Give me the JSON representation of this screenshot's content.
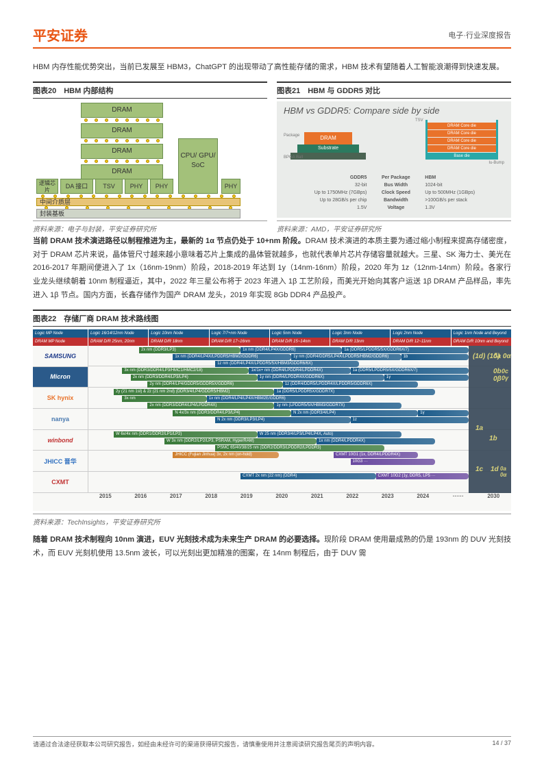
{
  "header": {
    "logo": "平安证券",
    "right": "电子·行业深度报告"
  },
  "intro": "HBM 内存性能优势突出，当前已发展至 HBM3，ChatGPT 的出现带动了高性能存储的需求，HBM 技术有望随着人工智能浪潮得到快速发展。",
  "fig20": {
    "title": "图表20　HBM 内部结构",
    "dram_label": "DRAM",
    "logic_chip": "逻辑芯片",
    "da": "DA 接口",
    "tsv": "TSV",
    "phy": "PHY",
    "soc": "CPU/\nGPU/\nSoC",
    "interposer": "中间介质层",
    "substrate": "封装基板",
    "source": "资料来源：电子与封装，平安证券研究所",
    "colors": {
      "block": "#a3c17a",
      "block_border": "#6b8e4e",
      "bump": "#f5c518",
      "interposer": "#e8c477",
      "substrate": "#cfd5c8"
    }
  },
  "fig21": {
    "title": "图表21　HBM 与 GDDR5 对比",
    "cmp_title": "HBM vs GDDR5:\nCompare side by side",
    "gddr": {
      "package": "Package",
      "dram": "DRAM",
      "substrate": "Substrate",
      "bga": "BPGA Ball"
    },
    "hbm": {
      "tsv": "TSV",
      "core_die": "DRAM Core die",
      "base_die": "Base die",
      "ubump": "Iu-Bump"
    },
    "table": {
      "hdr": [
        "GDDR5",
        "Per Package",
        "HBM"
      ],
      "rows": [
        [
          "32-bit",
          "Bus Width",
          "1024-bit"
        ],
        [
          "Up to 1750MHz (7GBps)",
          "Clock Speed",
          "Up to 500MHz (1GBps)"
        ],
        [
          "Up to 28GB/s per chip",
          "Bandwidth",
          ">100GB/s per stack"
        ],
        [
          "1.5V",
          "Voltage",
          "1.3V"
        ]
      ]
    },
    "source": "资料来源：AMD，平安证券研究所"
  },
  "para1_bold": "当前 DRAM 技术演进路径以制程推进为主，最新的 1α 节点仍处于 10+nm 阶段。",
  "para1": "DRAM 技术演进的本质主要为通过缩小制程来提高存储密度，对于 DRAM 芯片来说，晶体管尺寸越来越小意味着芯片上集成的晶体管就越多，也就代表单片芯片存储容量就越大。三星、SK 海力士、美光在 2016-2017 年期间便进入了 1x（16nm-19nm）阶段，2018-2019 年达到 1y（14nm-16nm）阶段，2020 年为 1z（12nm-14nm）阶段。各家行业龙头继续朝着 10nm 制程逼近，其中，2022 年三星公布将于 2023 年进入 1β 工艺阶段，而美光开始向其客户运送 1β DRAM 产品样品，率先进入 1β 节点。国内方面，长鑫存储作为国产 DRAM 龙头，2019 年实现 8Gb DDR4 产品投产。",
  "fig22": {
    "title": "图表22　存储厂商 DRAM 技术路线图",
    "hdr_left": [
      "Logic MP Node",
      "DRAM MP Node"
    ],
    "hdr_logic": [
      "Logic 16/14/12nm Node",
      "Logic 10nm Node",
      "Logic 7/7+nm Node",
      "Logic 5nm Node",
      "Logic 3nm Node",
      "Logic 2nm Node",
      "Logic 1nm Node and Beyond"
    ],
    "hdr_dram": [
      "DRAM D/R 25nm, 20nm",
      "DRAM D/R 18nm",
      "DRAM D/R 17~16nm",
      "DRAM D/R 15~14nm",
      "DRAM D/R 13nm",
      "DRAM D/R 12~11nm",
      "DRAM D/R 10nm and Beyond"
    ],
    "colors": {
      "logic_hdr": "#1a5a8a",
      "dram_hdr": "#c03030"
    },
    "companies": [
      {
        "name": "SAMSUNG",
        "class": "samsung"
      },
      {
        "name": "Micron",
        "class": "micron"
      },
      {
        "name": "SK hynix",
        "class": "skhynix"
      },
      {
        "name": "nanya",
        "class": "nanya"
      },
      {
        "name": "winbond",
        "class": "winbond"
      },
      {
        "name": "JHICC 晋华",
        "class": "jhicc"
      },
      {
        "name": "CXMT",
        "class": "cxmt"
      }
    ],
    "years": [
      "2015",
      "2016",
      "2017",
      "2018",
      "2019",
      "2020",
      "2021",
      "2022",
      "2023",
      "2024",
      "······",
      "2030"
    ],
    "bars": [
      {
        "lane": 0,
        "row": 0,
        "start": 12,
        "end": 36,
        "color": "#3a7a3a",
        "label": "2x nm (DDR3/LP3)"
      },
      {
        "lane": 0,
        "row": 0,
        "start": 36,
        "end": 60,
        "color": "#1a5a8a",
        "label": "1x nm (DDR4/LP4X/GDDR6)"
      },
      {
        "lane": 0,
        "row": 1,
        "start": 20,
        "end": 48,
        "color": "#1a5a8a",
        "label": "1x nm (DDR4/LP4X/LPDDR5/HBM2/GDDR6)"
      },
      {
        "lane": 0,
        "row": 1,
        "start": 48,
        "end": 74,
        "color": "#1a5a8a",
        "label": "1y nm (DDR4/DDR5/LP4X/LPDDR5/HBM2/GDDR6)"
      },
      {
        "lane": 0,
        "row": 0,
        "start": 60,
        "end": 90,
        "color": "#1a5a8a",
        "label": "1a (DDR5/LPDDR5/5X/GDDR6X/7)"
      },
      {
        "lane": 0,
        "row": 1,
        "start": 74,
        "end": 90,
        "color": "#1a5a8a",
        "label": "1b"
      },
      {
        "lane": 0,
        "row": 2,
        "start": 30,
        "end": 64,
        "color": "#1a5a8a",
        "label": "1z nm (DDR4/LP4X/LPDDR5/5X/HBM3/GDDR6/6X)"
      },
      {
        "lane": 1,
        "row": 0,
        "start": 8,
        "end": 38,
        "color": "#3a7a3a",
        "label": "3x nm (DDR3/DDR4/LP3/HMC1/HMC2/18)"
      },
      {
        "lane": 1,
        "row": 1,
        "start": 10,
        "end": 40,
        "color": "#3a7a3a",
        "label": "2x nm (DDR3/DDR4/LP3/LP4)"
      },
      {
        "lane": 1,
        "row": 1,
        "start": 40,
        "end": 70,
        "color": "#1a5a8a",
        "label": "1y nm (DDR4/LPDDR4X/GDDR6X)"
      },
      {
        "lane": 1,
        "row": 0,
        "start": 38,
        "end": 62,
        "color": "#1a5a8a",
        "label": "1x/1x+ nm (DDR4/LPDDR4/LPDDR4X)"
      },
      {
        "lane": 1,
        "row": 2,
        "start": 14,
        "end": 46,
        "color": "#3a7a3a",
        "label": "2y nm (DDR4/LP4/GDDR5/GDDR5X/GDDR6)"
      },
      {
        "lane": 1,
        "row": 2,
        "start": 46,
        "end": 78,
        "color": "#1a5a8a",
        "label": "1z (DDR4/DDR5/LPDDR4X/LPDDR5/GDDR6X)"
      },
      {
        "lane": 1,
        "row": 0,
        "start": 62,
        "end": 90,
        "color": "#1a5a8a",
        "label": "1a (DDR5/LPDDR5/5X/GDDR6X/7)"
      },
      {
        "lane": 1,
        "row": 1,
        "start": 70,
        "end": 90,
        "color": "#1a5a8a",
        "label": "1γ"
      },
      {
        "lane": 2,
        "row": 0,
        "start": 6,
        "end": 44,
        "color": "#3a7a3a",
        "label": "2y (21 nm 1st) & 2z (21 nm 2nd) (DDR3/4/LP4/GDDR5/HBM2)"
      },
      {
        "lane": 2,
        "row": 1,
        "start": 8,
        "end": 28,
        "color": "#3a7a3a",
        "label": "3x nm"
      },
      {
        "lane": 2,
        "row": 1,
        "start": 28,
        "end": 62,
        "color": "#1a5a8a",
        "label": "1x nm (DDR4/LP4/LP4X/HBM2E/GDDR6)"
      },
      {
        "lane": 2,
        "row": 2,
        "start": 14,
        "end": 44,
        "color": "#3a7a3a",
        "label": "2x nm (DDR3/DDR4/LP4/LPDDR4X)"
      },
      {
        "lane": 2,
        "row": 2,
        "start": 44,
        "end": 74,
        "color": "#1a5a8a",
        "label": "1y nm (LPDDR5/5X/HBM3/GDDR7X)"
      },
      {
        "lane": 2,
        "row": 0,
        "start": 44,
        "end": 82,
        "color": "#1a5a8a",
        "label": "1a (DDR5/LPDDR5X/GDDR7X)"
      },
      {
        "lane": 3,
        "row": 0,
        "start": 20,
        "end": 48,
        "color": "#3a7a3a",
        "label": "N 4x/3x nm (DDR3/DDR4/LP3/LP4)"
      },
      {
        "lane": 3,
        "row": 0,
        "start": 48,
        "end": 78,
        "color": "#1a5a8a",
        "label": "N 2x nm (DDR3/4/LP4)"
      },
      {
        "lane": 3,
        "row": 1,
        "start": 30,
        "end": 62,
        "color": "#1a5a8a",
        "label": "N 2x nm (DDR3/LP3/LP4)"
      },
      {
        "lane": 3,
        "row": 0,
        "start": 78,
        "end": 90,
        "color": "#1a5a8a",
        "label": "1γ"
      },
      {
        "lane": 3,
        "row": 1,
        "start": 62,
        "end": 90,
        "color": "#1a5a8a",
        "label": "1z"
      },
      {
        "lane": 4,
        "row": 0,
        "start": 6,
        "end": 40,
        "color": "#3a7a3a",
        "label": "W 6x/4x nm (DDR1/DDR2/LP1/LP2)"
      },
      {
        "lane": 4,
        "row": 0,
        "start": 40,
        "end": 74,
        "color": "#1a5a8a",
        "label": "W 25 nm (DDR3/4/LP3/LP4/LP4X, Auto)"
      },
      {
        "lane": 4,
        "row": 1,
        "start": 18,
        "end": 54,
        "color": "#3a7a3a",
        "label": "W 3x nm (DDR2/LP2/LP3, PSRAM, HyperRAM)"
      },
      {
        "lane": 4,
        "row": 1,
        "start": 54,
        "end": 82,
        "color": "#1a5a8a",
        "label": "1x nm (DDR4/LPDDR4X)"
      },
      {
        "lane": 4,
        "row": 2,
        "start": 30,
        "end": 70,
        "color": "#3a7a3a",
        "label": "PSMC 65/40/38/25 nm (DDR2/DDR3/LPDDR2/LPDDR3)"
      },
      {
        "lane": 5,
        "row": 0,
        "start": 20,
        "end": 45,
        "color": "#d08030",
        "label": "JHICC (Fujian Jinhua) 3x, 2x nm (on-hold)"
      },
      {
        "lane": 5,
        "row": 0,
        "start": 58,
        "end": 78,
        "color": "#6a4aa0",
        "label": "CXMT 10G1 (1x, DDR4/LPDDR4X)"
      },
      {
        "lane": 5,
        "row": 1,
        "start": 62,
        "end": 82,
        "color": "#6a4aa0",
        "label": "10G3 ···"
      },
      {
        "lane": 6,
        "row": 0,
        "start": 36,
        "end": 68,
        "color": "#1a5a8a",
        "label": "CXMT 2x nm (22 nm) (DDR4)"
      },
      {
        "lane": 6,
        "row": 0,
        "start": 68,
        "end": 90,
        "color": "#6a4aa0",
        "label": "CXMT 10G2 (1y, DDR5, LP5 ···"
      }
    ],
    "future_labels": [
      "(1d)\n(1δ)",
      "0a\n0α",
      "0b\n0β",
      "0c\n0γ",
      "1a",
      "1b",
      "1c",
      "1d",
      "0a\n0α"
    ],
    "source": "资料来源：TechInsights，平安证券研究所"
  },
  "para2_bold": "随着 DRAM 技术制程向 10nm 演进，EUV 光刻技术成为未来生产 DRAM 的必要选择。",
  "para2": "现阶段 DRAM 使用最成熟的仍是 193nm 的 DUV 光刻技术，而 EUV 光刻机使用 13.5nm 波长，可以光刻出更加精准的图案，在 14nm 制程后，由于 DUV 需",
  "footer": {
    "left": "请通过合法途径获取本公司研究报告，如经由未经许可的渠道获得研究报告，请慎重使用并注意阅读研究报告尾页的声明内容。",
    "right": "14 / 37"
  }
}
